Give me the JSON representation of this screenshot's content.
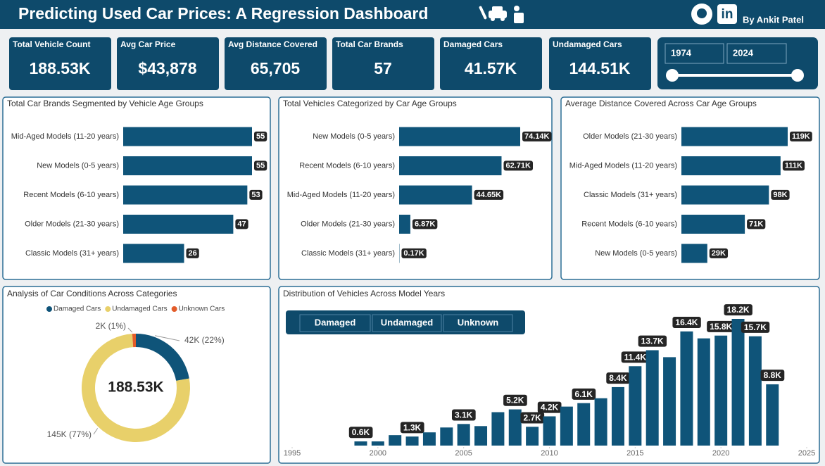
{
  "header": {
    "title": "Predicting Used Car Prices: A Regression Dashboard",
    "linkedin": "in",
    "author": "By Ankit Patel"
  },
  "kpis": [
    {
      "label": "Total Vehicle Count",
      "value": "188.53K"
    },
    {
      "label": "Avg Car Price",
      "value": "$43,878"
    },
    {
      "label": "Avg Distance Covered",
      "value": "65,705"
    },
    {
      "label": "Total Car Brands",
      "value": "57"
    },
    {
      "label": "Damaged Cars",
      "value": "41.57K"
    },
    {
      "label": "Undamaged Cars",
      "value": "144.51K"
    }
  ],
  "year_slicer": {
    "from": "1974",
    "to": "2024"
  },
  "condition_buttons": [
    "Damaged",
    "Undamaged",
    "Unknown"
  ],
  "chart_data": [
    {
      "type": "hbar",
      "title": "Total Car Brands Segmented by Vehicle Age Groups",
      "color": "#0f5479",
      "categories": [
        "Mid-Aged Models (11-20 years)",
        "New Models (0-5 years)",
        "Recent Models (6-10 years)",
        "Older Models (21-30 years)",
        "Classic Models (31+ years)"
      ],
      "values": [
        55,
        55,
        53,
        47,
        26
      ]
    },
    {
      "type": "hbar",
      "title": "Total Vehicles Categorized by Car Age Groups",
      "color": "#0f5479",
      "categories": [
        "New Models (0-5 years)",
        "Recent Models (6-10 years)",
        "Mid-Aged Models (11-20 years)",
        "Older Models (21-30 years)",
        "Classic Models (31+ years)"
      ],
      "values": [
        74140,
        62710,
        44650,
        6870,
        170
      ],
      "value_labels": [
        "74.14K",
        "62.71K",
        "44.65K",
        "6.87K",
        "0.17K"
      ]
    },
    {
      "type": "hbar",
      "title": "Average Distance Covered Across Car Age Groups",
      "color": "#0f5479",
      "categories": [
        "Older Models (21-30 years)",
        "Mid-Aged Models (11-20 years)",
        "Classic Models (31+ years)",
        "Recent Models (6-10 years)",
        "New Models (0-5 years)"
      ],
      "values": [
        119000,
        111000,
        98000,
        71000,
        29000
      ],
      "value_labels": [
        "119K",
        "111K",
        "98K",
        "71K",
        "29K"
      ]
    },
    {
      "type": "donut",
      "title": "Analysis of Car Conditions Across Categories",
      "categories": [
        "Damaged Cars",
        "Undamaged Cars",
        "Unknown Cars"
      ],
      "colors": [
        "#0f5479",
        "#e8d06a",
        "#e35c2a"
      ],
      "values": [
        42000,
        145000,
        2000
      ],
      "value_labels": [
        "42K (22%)",
        "145K (77%)",
        "2K (1%)"
      ],
      "center_label": "188.53K"
    },
    {
      "type": "column",
      "title": "Distribution of Vehicles Across Model Years",
      "color": "#0f5479",
      "x": [
        1999,
        2000,
        2001,
        2002,
        2003,
        2004,
        2005,
        2006,
        2007,
        2008,
        2009,
        2010,
        2011,
        2012,
        2013,
        2014,
        2015,
        2016,
        2017,
        2018,
        2019,
        2020,
        2021,
        2022,
        2023
      ],
      "values": [
        600,
        600,
        1500,
        1300,
        1900,
        2600,
        3100,
        2800,
        4800,
        5200,
        2700,
        4200,
        5600,
        6100,
        6800,
        8400,
        11400,
        13700,
        12700,
        16400,
        15400,
        15800,
        18200,
        15700,
        8800
      ],
      "value_labels": [
        "0.6K",
        null,
        null,
        "1.3K",
        null,
        null,
        "3.1K",
        null,
        null,
        "5.2K",
        "2.7K",
        "4.2K",
        null,
        "6.1K",
        null,
        "8.4K",
        "11.4K",
        "13.7K",
        null,
        "16.4K",
        null,
        "15.8K",
        "18.2K",
        "15.7K",
        "8.8K"
      ],
      "xlim": [
        1995,
        2025
      ],
      "xticks": [
        1995,
        2000,
        2005,
        2010,
        2015,
        2020,
        2025
      ]
    }
  ]
}
